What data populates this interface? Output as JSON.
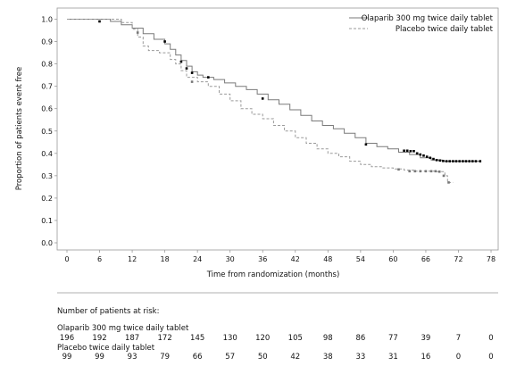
{
  "chart_data": {
    "type": "line",
    "xlabel": "Time from randomization (months)",
    "ylabel": "Proportion of patients event free",
    "xlim": [
      0,
      78
    ],
    "ylim": [
      0,
      1.0
    ],
    "x_ticks": [
      "0",
      "6",
      "12",
      "18",
      "24",
      "30",
      "36",
      "42",
      "48",
      "54",
      "60",
      "66",
      "72",
      "78"
    ],
    "y_ticks": [
      "0.0",
      "0.1",
      "0.2",
      "0.3",
      "0.4",
      "0.5",
      "0.6",
      "0.7",
      "0.8",
      "0.9",
      "1.0"
    ],
    "legend_position": "top-right",
    "series": [
      {
        "name": "Olaparib 300 mg twice daily tablet",
        "style": "solid",
        "color": "#7a7a7a",
        "censor_color": "#000000",
        "points": [
          [
            0,
            1.0
          ],
          [
            6,
            1.0
          ],
          [
            8,
            0.99
          ],
          [
            10,
            0.975
          ],
          [
            12,
            0.96
          ],
          [
            14,
            0.935
          ],
          [
            16,
            0.91
          ],
          [
            18,
            0.89
          ],
          [
            19,
            0.865
          ],
          [
            20,
            0.84
          ],
          [
            21,
            0.815
          ],
          [
            22,
            0.79
          ],
          [
            23,
            0.765
          ],
          [
            24,
            0.75
          ],
          [
            25,
            0.74
          ],
          [
            27,
            0.73
          ],
          [
            29,
            0.715
          ],
          [
            31,
            0.7
          ],
          [
            33,
            0.685
          ],
          [
            35,
            0.665
          ],
          [
            37,
            0.64
          ],
          [
            39,
            0.62
          ],
          [
            41,
            0.595
          ],
          [
            43,
            0.57
          ],
          [
            45,
            0.545
          ],
          [
            47,
            0.525
          ],
          [
            49,
            0.51
          ],
          [
            51,
            0.49
          ],
          [
            53,
            0.47
          ],
          [
            55,
            0.445
          ],
          [
            57,
            0.43
          ],
          [
            59,
            0.42
          ],
          [
            61,
            0.405
          ],
          [
            63,
            0.395
          ],
          [
            65,
            0.38
          ],
          [
            67,
            0.37
          ],
          [
            69,
            0.365
          ],
          [
            76,
            0.365
          ]
        ],
        "censored": [
          [
            6,
            0.99
          ],
          [
            18,
            0.9
          ],
          [
            21,
            0.81
          ],
          [
            22,
            0.78
          ],
          [
            23,
            0.76
          ],
          [
            26,
            0.74
          ],
          [
            36,
            0.645
          ],
          [
            55,
            0.44
          ],
          [
            62,
            0.412
          ],
          [
            62.6,
            0.412
          ],
          [
            63.2,
            0.41
          ],
          [
            63.8,
            0.41
          ],
          [
            64.4,
            0.4
          ],
          [
            65,
            0.395
          ],
          [
            65.6,
            0.39
          ],
          [
            66.2,
            0.385
          ],
          [
            66.8,
            0.38
          ],
          [
            67.4,
            0.375
          ],
          [
            68,
            0.37
          ],
          [
            68.6,
            0.368
          ],
          [
            69.2,
            0.366
          ],
          [
            69.8,
            0.365
          ],
          [
            70.4,
            0.365
          ],
          [
            71,
            0.365
          ],
          [
            71.6,
            0.365
          ],
          [
            72.2,
            0.365
          ],
          [
            72.8,
            0.365
          ],
          [
            73.4,
            0.365
          ],
          [
            74,
            0.365
          ],
          [
            74.6,
            0.365
          ],
          [
            75.2,
            0.365
          ],
          [
            76,
            0.365
          ]
        ]
      },
      {
        "name": "Placebo twice daily tablet",
        "style": "dashed",
        "color": "#9a9a9a",
        "censor_color": "#777777",
        "points": [
          [
            0,
            1.0
          ],
          [
            8,
            1.0
          ],
          [
            10,
            0.985
          ],
          [
            12,
            0.955
          ],
          [
            13,
            0.92
          ],
          [
            14,
            0.88
          ],
          [
            15,
            0.86
          ],
          [
            17,
            0.85
          ],
          [
            19,
            0.82
          ],
          [
            20,
            0.8
          ],
          [
            21,
            0.77
          ],
          [
            22,
            0.74
          ],
          [
            24,
            0.72
          ],
          [
            26,
            0.7
          ],
          [
            28,
            0.665
          ],
          [
            30,
            0.635
          ],
          [
            32,
            0.6
          ],
          [
            34,
            0.575
          ],
          [
            36,
            0.555
          ],
          [
            38,
            0.525
          ],
          [
            40,
            0.5
          ],
          [
            42,
            0.47
          ],
          [
            44,
            0.445
          ],
          [
            46,
            0.42
          ],
          [
            48,
            0.4
          ],
          [
            50,
            0.385
          ],
          [
            52,
            0.365
          ],
          [
            54,
            0.35
          ],
          [
            56,
            0.34
          ],
          [
            58,
            0.335
          ],
          [
            60,
            0.33
          ],
          [
            62,
            0.325
          ],
          [
            64,
            0.32
          ],
          [
            66,
            0.32
          ],
          [
            68,
            0.318
          ],
          [
            69.5,
            0.3
          ],
          [
            70,
            0.27
          ],
          [
            71,
            0.27
          ]
        ],
        "censored": [
          [
            13,
            0.94
          ],
          [
            23,
            0.72
          ],
          [
            61,
            0.328
          ],
          [
            63,
            0.32
          ],
          [
            64,
            0.32
          ],
          [
            65,
            0.32
          ],
          [
            66,
            0.32
          ],
          [
            67,
            0.32
          ],
          [
            67.8,
            0.32
          ],
          [
            68.5,
            0.318
          ],
          [
            69.3,
            0.3
          ],
          [
            70.2,
            0.27
          ]
        ]
      }
    ],
    "risk_table": {
      "title": "Number of patients at risk:",
      "times": [
        0,
        6,
        12,
        18,
        24,
        30,
        36,
        42,
        48,
        54,
        60,
        66,
        72,
        78
      ],
      "rows": [
        {
          "label": "Olaparib 300 mg twice daily tablet",
          "counts": [
            "196",
            "192",
            "187",
            "172",
            "145",
            "130",
            "120",
            "105",
            "98",
            "86",
            "77",
            "39",
            "7",
            "0"
          ]
        },
        {
          "label": "Placebo twice daily tablet",
          "counts": [
            "99",
            "99",
            "93",
            "79",
            "66",
            "57",
            "50",
            "42",
            "38",
            "33",
            "31",
            "16",
            "0",
            "0"
          ]
        }
      ]
    }
  }
}
